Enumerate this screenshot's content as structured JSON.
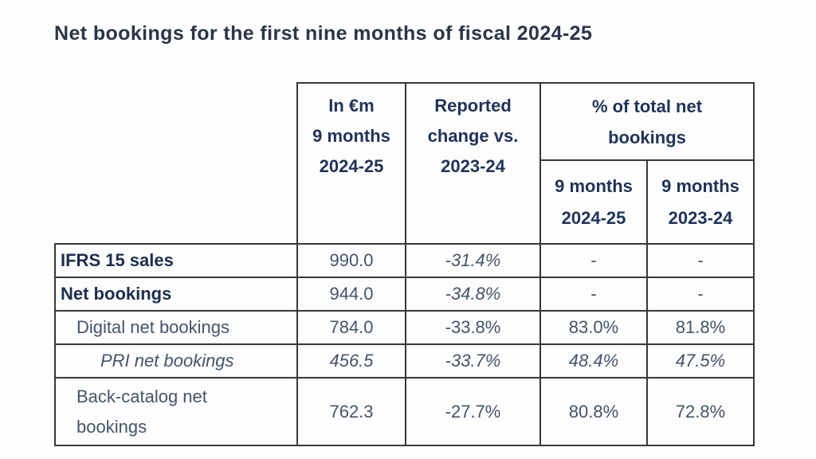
{
  "title": "Net bookings for the first nine months of fiscal 2024-25",
  "table": {
    "header": {
      "in_eur_lines": [
        "In €m",
        "9 months",
        "2024-25"
      ],
      "change_lines": [
        "Reported",
        "change vs.",
        "2023-24"
      ],
      "pct_group_lines": [
        "% of total net",
        "bookings"
      ],
      "pct_2024_lines": [
        "9 months",
        "2024-25"
      ],
      "pct_2023_lines": [
        "9 months",
        "2023-24"
      ]
    },
    "rows": [
      {
        "label": "IFRS 15 sales",
        "in_eur": "990.0",
        "change": "-31.4%",
        "pct_2024": "-",
        "pct_2023": "-"
      },
      {
        "label": "Net bookings",
        "in_eur": "944.0",
        "change": "-34.8%",
        "pct_2024": "-",
        "pct_2023": "-"
      },
      {
        "label": "Digital net bookings",
        "in_eur": "784.0",
        "change": "-33.8%",
        "pct_2024": "83.0%",
        "pct_2023": "81.8%"
      },
      {
        "label": "PRI net bookings",
        "in_eur": "456.5",
        "change": "-33.7%",
        "pct_2024": "48.4%",
        "pct_2023": "47.5%"
      },
      {
        "label_lines": [
          "Back-catalog net",
          "bookings"
        ],
        "in_eur": "762.3",
        "change": "-27.7%",
        "pct_2024": "80.8%",
        "pct_2023": "72.8%"
      }
    ]
  },
  "colors": {
    "background": "#fdfdfd",
    "title_text": "#2b3548",
    "header_text": "#1f3357",
    "bold_label_text": "#1c2e4d",
    "body_text": "#44546a",
    "border": "#373737"
  }
}
